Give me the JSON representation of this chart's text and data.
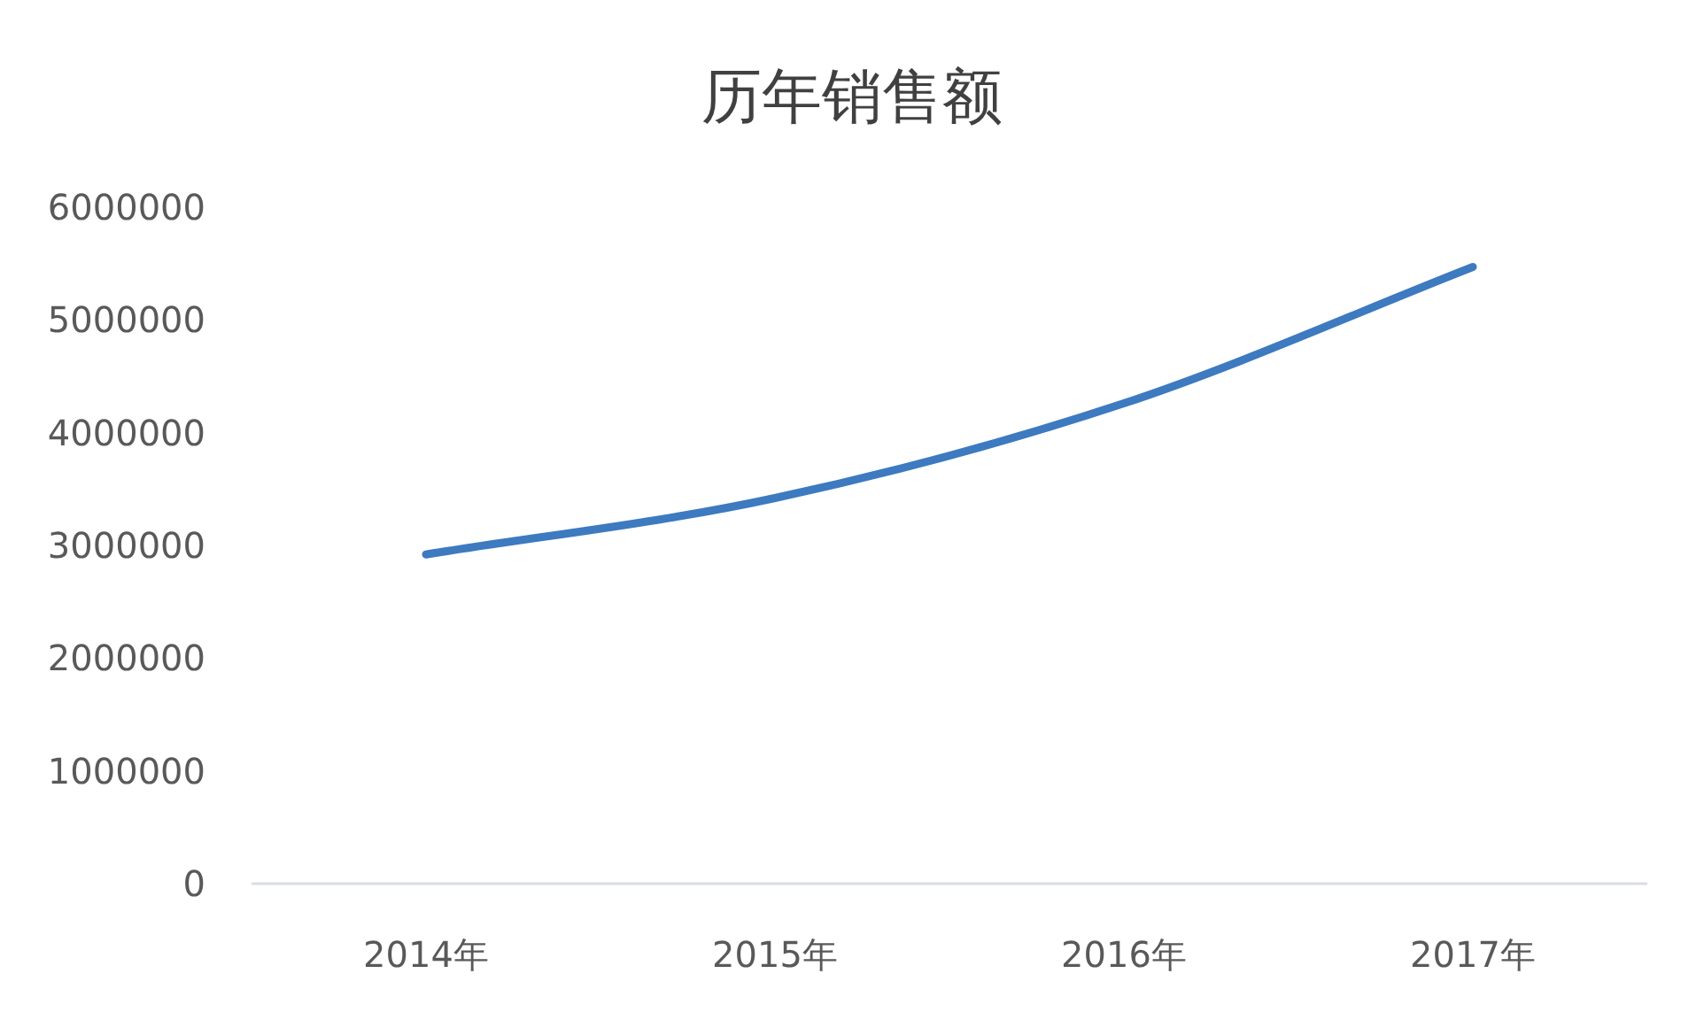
{
  "chart_data": {
    "type": "line",
    "title": "历年销售额",
    "categories": [
      "2014年",
      "2015年",
      "2016年",
      "2017年"
    ],
    "series": [
      {
        "color": "#3d7ac0",
        "values": [
          2920000,
          3420000,
          4260000,
          5470000
        ]
      }
    ],
    "ylim": [
      0,
      6000000
    ],
    "yticks": [
      0,
      1000000,
      2000000,
      3000000,
      4000000,
      5000000,
      6000000
    ],
    "grid": false,
    "marker": "none",
    "line_style": "solid"
  }
}
